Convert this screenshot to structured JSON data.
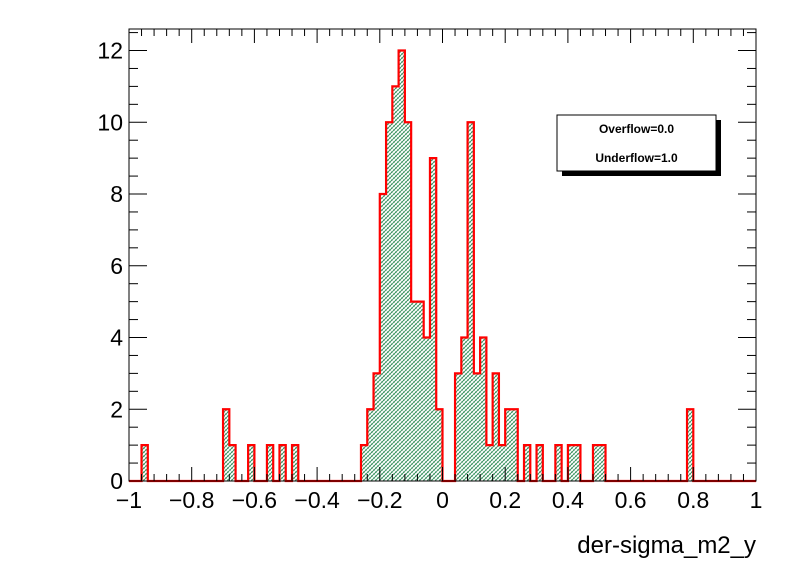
{
  "chart_data": {
    "type": "bar",
    "title": "",
    "xlabel": "der-sigma_m2_y",
    "ylabel": "",
    "xlim": [
      -1,
      1
    ],
    "ylim": [
      0,
      12.6
    ],
    "bin_width": 0.02,
    "x_ticks": [
      {
        "value": -1,
        "label": "−1"
      },
      {
        "value": -0.8,
        "label": "−0.8"
      },
      {
        "value": -0.6,
        "label": "−0.6"
      },
      {
        "value": -0.4,
        "label": "−0.4"
      },
      {
        "value": -0.2,
        "label": "−0.2"
      },
      {
        "value": 0,
        "label": "0"
      },
      {
        "value": 0.2,
        "label": "0.2"
      },
      {
        "value": 0.4,
        "label": "0.4"
      },
      {
        "value": 0.6,
        "label": "0.6"
      },
      {
        "value": 0.8,
        "label": "0.8"
      },
      {
        "value": 1,
        "label": "1"
      }
    ],
    "y_ticks": [
      {
        "value": 0,
        "label": "0"
      },
      {
        "value": 2,
        "label": "2"
      },
      {
        "value": 4,
        "label": "4"
      },
      {
        "value": 6,
        "label": "6"
      },
      {
        "value": 8,
        "label": "8"
      },
      {
        "value": 10,
        "label": "10"
      },
      {
        "value": 12,
        "label": "12"
      }
    ],
    "bins": [
      {
        "x": -0.96,
        "y": 1
      },
      {
        "x": -0.7,
        "y": 2
      },
      {
        "x": -0.68,
        "y": 1
      },
      {
        "x": -0.62,
        "y": 1
      },
      {
        "x": -0.56,
        "y": 1
      },
      {
        "x": -0.52,
        "y": 1
      },
      {
        "x": -0.48,
        "y": 1
      },
      {
        "x": -0.26,
        "y": 1
      },
      {
        "x": -0.24,
        "y": 2
      },
      {
        "x": -0.22,
        "y": 3
      },
      {
        "x": -0.2,
        "y": 8
      },
      {
        "x": -0.18,
        "y": 10
      },
      {
        "x": -0.16,
        "y": 11
      },
      {
        "x": -0.14,
        "y": 12
      },
      {
        "x": -0.12,
        "y": 10
      },
      {
        "x": -0.1,
        "y": 5
      },
      {
        "x": -0.08,
        "y": 5
      },
      {
        "x": -0.06,
        "y": 4
      },
      {
        "x": -0.04,
        "y": 9
      },
      {
        "x": -0.02,
        "y": 2
      },
      {
        "x": 0.04,
        "y": 3
      },
      {
        "x": 0.06,
        "y": 4
      },
      {
        "x": 0.08,
        "y": 10
      },
      {
        "x": 0.1,
        "y": 3
      },
      {
        "x": 0.12,
        "y": 4
      },
      {
        "x": 0.14,
        "y": 1
      },
      {
        "x": 0.16,
        "y": 3
      },
      {
        "x": 0.18,
        "y": 1
      },
      {
        "x": 0.2,
        "y": 2
      },
      {
        "x": 0.22,
        "y": 2
      },
      {
        "x": 0.26,
        "y": 1
      },
      {
        "x": 0.3,
        "y": 1
      },
      {
        "x": 0.36,
        "y": 1
      },
      {
        "x": 0.4,
        "y": 1
      },
      {
        "x": 0.42,
        "y": 1
      },
      {
        "x": 0.48,
        "y": 1
      },
      {
        "x": 0.5,
        "y": 1
      },
      {
        "x": 0.78,
        "y": 2
      }
    ],
    "legend": {
      "position": "top-right",
      "entries": [
        "Overflow=0.0",
        "Underflow=1.0"
      ]
    },
    "grid": false,
    "colors": {
      "line": "#ff0000",
      "fill_hatch": "#2e8b57",
      "frame": "#000000",
      "background": "#ffffff"
    }
  }
}
